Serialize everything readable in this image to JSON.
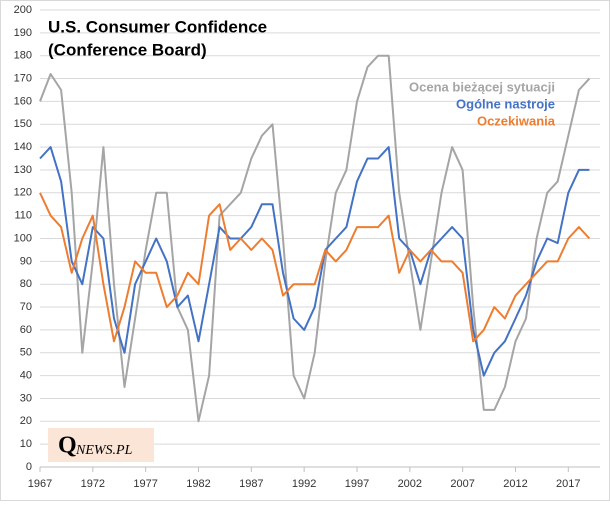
{
  "chart_data": {
    "type": "line",
    "title": "U.S. Consumer Confidence",
    "subtitle": "(Conference Board)",
    "watermark": [
      "Q",
      "NEWS.PL"
    ],
    "x": [
      1967,
      1968,
      1969,
      1970,
      1971,
      1972,
      1973,
      1974,
      1975,
      1976,
      1977,
      1978,
      1979,
      1980,
      1981,
      1982,
      1983,
      1984,
      1985,
      1986,
      1987,
      1988,
      1989,
      1990,
      1991,
      1992,
      1993,
      1994,
      1995,
      1996,
      1997,
      1998,
      1999,
      2000,
      2001,
      2002,
      2003,
      2004,
      2005,
      2006,
      2007,
      2008,
      2009,
      2010,
      2011,
      2012,
      2013,
      2014,
      2015,
      2016,
      2017,
      2018,
      2019
    ],
    "series": [
      {
        "name": "Ocena bieżącej sytuacji",
        "color": "#a5a5a5",
        "values": [
          160,
          172,
          165,
          120,
          50,
          90,
          140,
          80,
          35,
          65,
          95,
          120,
          120,
          70,
          60,
          20,
          40,
          110,
          115,
          120,
          135,
          145,
          150,
          100,
          40,
          30,
          50,
          90,
          120,
          130,
          160,
          175,
          180,
          180,
          120,
          90,
          60,
          90,
          120,
          140,
          130,
          70,
          25,
          25,
          35,
          55,
          65,
          100,
          120,
          125,
          145,
          165,
          170
        ]
      },
      {
        "name": "Ogólne nastroje",
        "color": "#4472c4",
        "values": [
          135,
          140,
          125,
          90,
          80,
          105,
          100,
          65,
          50,
          80,
          90,
          100,
          90,
          70,
          75,
          55,
          80,
          105,
          100,
          100,
          105,
          115,
          115,
          85,
          65,
          60,
          70,
          95,
          100,
          105,
          125,
          135,
          135,
          140,
          100,
          95,
          80,
          95,
          100,
          105,
          100,
          60,
          40,
          50,
          55,
          65,
          75,
          90,
          100,
          98,
          120,
          130,
          130
        ]
      },
      {
        "name": "Oczekiwania",
        "color": "#ed7d31",
        "values": [
          120,
          110,
          105,
          85,
          100,
          110,
          80,
          55,
          70,
          90,
          85,
          85,
          70,
          75,
          85,
          80,
          110,
          115,
          95,
          100,
          95,
          100,
          95,
          75,
          80,
          80,
          80,
          95,
          90,
          95,
          105,
          105,
          105,
          110,
          85,
          95,
          90,
          95,
          90,
          90,
          85,
          55,
          60,
          70,
          65,
          75,
          80,
          85,
          90,
          90,
          100,
          105,
          100
        ]
      }
    ],
    "xlim": [
      1967,
      2020
    ],
    "xticks": [
      1967,
      1972,
      1977,
      1982,
      1987,
      1992,
      1997,
      2002,
      2007,
      2012,
      2017
    ],
    "ylim": [
      0,
      200
    ],
    "yticks": [
      0,
      10,
      20,
      30,
      40,
      50,
      60,
      70,
      80,
      90,
      100,
      110,
      120,
      130,
      140,
      150,
      160,
      170,
      180,
      190,
      200
    ],
    "grid": true
  }
}
